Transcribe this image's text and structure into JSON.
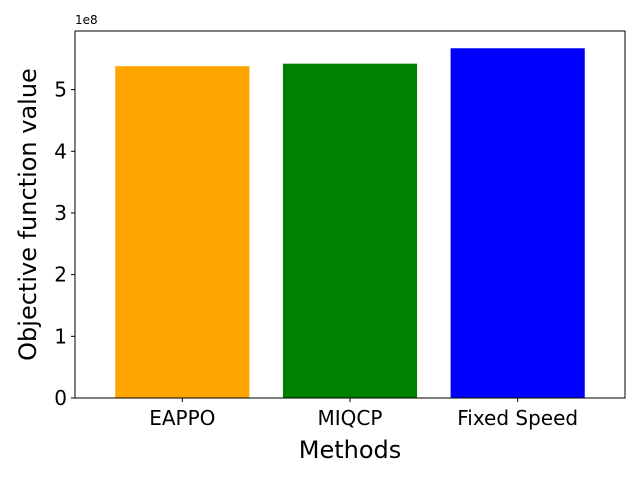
{
  "chart_data": {
    "type": "bar",
    "categories": [
      "EAPPO",
      "MIQCP",
      "Fixed Speed"
    ],
    "values": [
      538000000,
      542000000,
      567000000
    ],
    "colors": [
      "#ffa500",
      "#008000",
      "#0000ff"
    ],
    "xlabel": "Methods",
    "ylabel": "Objective function value",
    "y_offset_label": "1e8",
    "yscale_factor": 100000000,
    "ylim": [
      0,
      595000000
    ],
    "yticks": [
      0,
      100000000,
      200000000,
      300000000,
      400000000,
      500000000
    ],
    "ytick_labels": [
      "0",
      "1",
      "2",
      "3",
      "4",
      "5"
    ],
    "grid": false,
    "legend": "none"
  }
}
